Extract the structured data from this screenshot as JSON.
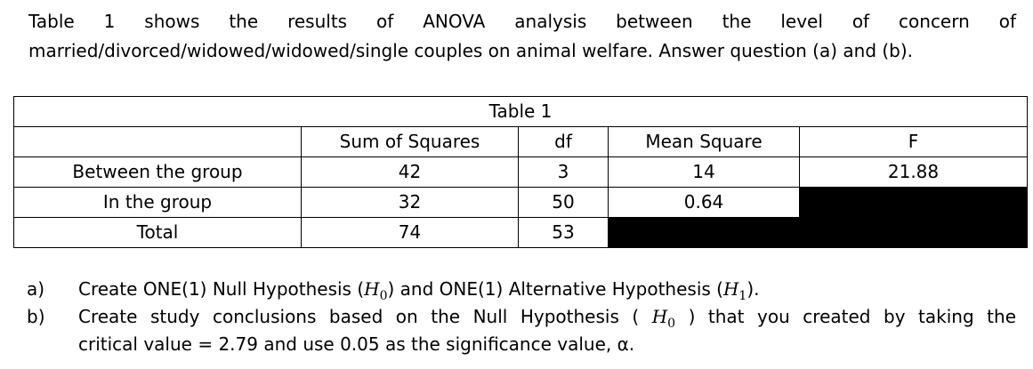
{
  "intro": {
    "line1": "Table 1 shows the results of ANOVA analysis between the level of concern of",
    "line2": "married/divorced/widowed/widowed/single couples on animal welfare. Answer question (a) and (b)."
  },
  "table": {
    "caption": "Table 1",
    "headers": [
      "",
      "Sum of Squares",
      "df",
      "Mean Square",
      "F"
    ],
    "rows": [
      {
        "label": "Between the group",
        "ss": "42",
        "df": "3",
        "ms": "14",
        "f": "21.88"
      },
      {
        "label": "In the group",
        "ss": "32",
        "df": "50",
        "ms": "0.64",
        "f": ""
      },
      {
        "label": "Total",
        "ss": "74",
        "df": "53",
        "ms": "",
        "f": ""
      }
    ],
    "blacked_color": "#000000"
  },
  "questions": {
    "a": {
      "letter": "a)",
      "part1": "Create ONE(1) Null Hypothesis (",
      "sym1": "H",
      "sub1": "0",
      "part2": ") and ONE(1) Alternative Hypothesis (",
      "sym2": "H",
      "sub2": "1",
      "part3": ")."
    },
    "b": {
      "letter": "b)",
      "part1": "Create study conclusions based on the Null Hypothesis (",
      "sym1": "H",
      "sub1": "0",
      "part2": ") that you created by taking the",
      "line2": "critical value = 2.79 and use 0.05 as the significance value, α."
    }
  }
}
